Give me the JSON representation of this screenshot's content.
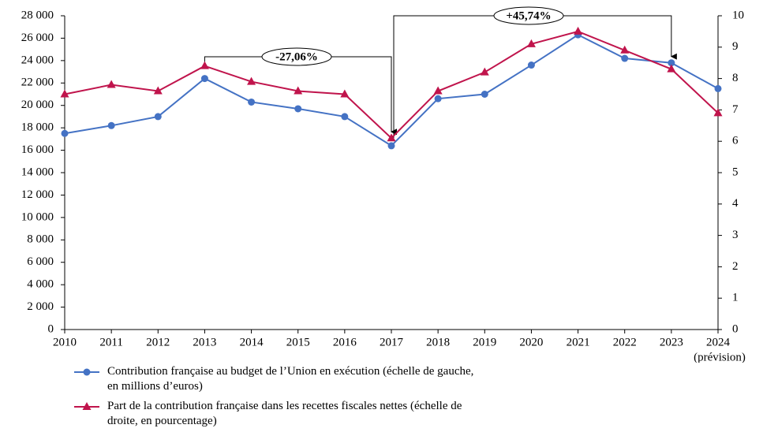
{
  "chart_data": {
    "type": "line",
    "categories": [
      "2010",
      "2011",
      "2012",
      "2013",
      "2014",
      "2015",
      "2016",
      "2017",
      "2018",
      "2019",
      "2020",
      "2021",
      "2022",
      "2023",
      "2024"
    ],
    "x_note": "(prévision)",
    "series": [
      {
        "name": "Contribution française au budget de l’Union en exécution (échelle de gauche, en millions d’euros)",
        "color": "#4472c4",
        "marker": "circle",
        "values": [
          17500,
          18200,
          19000,
          22400,
          20300,
          19700,
          19000,
          16400,
          20600,
          21000,
          23600,
          26300,
          24200,
          23800,
          21500
        ]
      },
      {
        "name": "Part de la contribution française dans les recettes fiscales nettes (échelle de droite, en pourcentage)",
        "color": "#c0144c",
        "marker": "triangle",
        "axis": "y2",
        "values": [
          7.5,
          7.8,
          7.6,
          8.4,
          7.9,
          7.6,
          7.5,
          6.1,
          7.6,
          8.2,
          9.1,
          9.5,
          8.9,
          8.3,
          6.9
        ]
      }
    ],
    "ylim": [
      0,
      28000
    ],
    "yticks": [
      0,
      {
        "value": 2000,
        "label": "2 000"
      },
      {
        "value": 4000,
        "label": "4 000"
      },
      {
        "value": 6000,
        "label": "6 000"
      },
      {
        "value": 8000,
        "label": "8 000"
      },
      {
        "value": 10000,
        "label": "10 000"
      },
      {
        "value": 12000,
        "label": "12 000"
      },
      {
        "value": 14000,
        "label": "14 000"
      },
      {
        "value": 16000,
        "label": "16 000"
      },
      {
        "value": 18000,
        "label": "18 000"
      },
      {
        "value": 20000,
        "label": "20 000"
      },
      {
        "value": 22000,
        "label": "22 000"
      },
      {
        "value": 24000,
        "label": "24 000"
      },
      {
        "value": 26000,
        "label": "26 000"
      },
      {
        "value": 28000,
        "label": "28 000"
      }
    ],
    "y2lim": [
      0,
      10
    ],
    "y2ticks": [
      0,
      1,
      2,
      3,
      4,
      5,
      6,
      7,
      8,
      9,
      10
    ],
    "grid": false,
    "annotations": [
      "-27,06%",
      "+45,74%"
    ]
  }
}
